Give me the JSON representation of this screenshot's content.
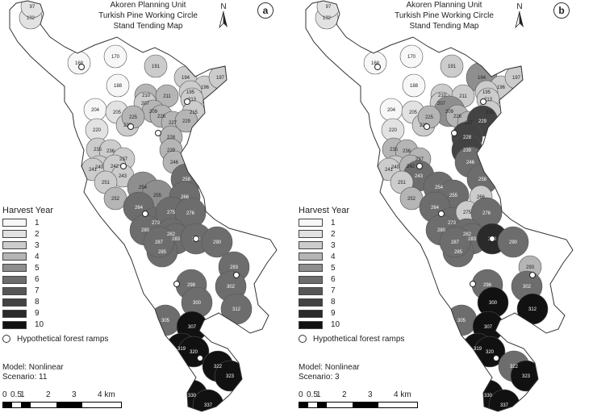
{
  "shade_colors": [
    "#f7f7f7",
    "#e2e2e2",
    "#cccccc",
    "#b5b5b5",
    "#8e8e8e",
    "#6d6d6d",
    "#575757",
    "#434343",
    "#2a2a2a",
    "#111111"
  ],
  "panels": [
    {
      "title_lines": [
        "Akoren Planning Unit",
        "Turkish Pine Working Circle",
        "Stand Tending Map"
      ],
      "letter": "a",
      "north_label": "N",
      "model": "Model: Nonlinear",
      "scenario": "Scenario: 11",
      "stands": [
        {
          "label": "132",
          "year": 2
        },
        {
          "label": "97",
          "year": 2
        },
        {
          "label": "168",
          "year": 1
        },
        {
          "label": "170",
          "year": 1
        },
        {
          "label": "191",
          "year": 3
        },
        {
          "label": "188",
          "year": 1
        },
        {
          "label": "194",
          "year": 3
        },
        {
          "label": "196",
          "year": 3
        },
        {
          "label": "197",
          "year": 3
        },
        {
          "label": "195",
          "year": 3
        },
        {
          "label": "210",
          "year": 4
        },
        {
          "label": "211",
          "year": 4
        },
        {
          "label": "204",
          "year": 1
        },
        {
          "label": "205",
          "year": 2
        },
        {
          "label": "207",
          "year": 3
        },
        {
          "label": "209",
          "year": 4
        },
        {
          "label": "213",
          "year": 3
        },
        {
          "label": "215",
          "year": 3
        },
        {
          "label": "220",
          "year": 2
        },
        {
          "label": "222",
          "year": 3
        },
        {
          "label": "225",
          "year": 4
        },
        {
          "label": "226",
          "year": 4
        },
        {
          "label": "227",
          "year": 4
        },
        {
          "label": "229",
          "year": 4
        },
        {
          "label": "228",
          "year": 4
        },
        {
          "label": "235",
          "year": 3
        },
        {
          "label": "236",
          "year": 3
        },
        {
          "label": "237",
          "year": 3
        },
        {
          "label": "239",
          "year": 4
        },
        {
          "label": "240",
          "year": 3
        },
        {
          "label": "241",
          "year": 3
        },
        {
          "label": "242",
          "year": 3
        },
        {
          "label": "243",
          "year": 3
        },
        {
          "label": "246",
          "year": 4
        },
        {
          "label": "251",
          "year": 3
        },
        {
          "label": "252",
          "year": 4
        },
        {
          "label": "254",
          "year": 5
        },
        {
          "label": "255",
          "year": 5
        },
        {
          "label": "258",
          "year": 6
        },
        {
          "label": "264",
          "year": 6
        },
        {
          "label": "266",
          "year": 6
        },
        {
          "label": "273",
          "year": 6
        },
        {
          "label": "275",
          "year": 6
        },
        {
          "label": "276",
          "year": 6
        },
        {
          "label": "280",
          "year": 6
        },
        {
          "label": "282",
          "year": 6
        },
        {
          "label": "283",
          "year": 6
        },
        {
          "label": "285",
          "year": 6
        },
        {
          "label": "287",
          "year": 6
        },
        {
          "label": "288",
          "year": 6
        },
        {
          "label": "290",
          "year": 6
        },
        {
          "label": "293",
          "year": 6
        },
        {
          "label": "298",
          "year": 6
        },
        {
          "label": "300",
          "year": 6
        },
        {
          "label": "302",
          "year": 6
        },
        {
          "label": "305",
          "year": 6
        },
        {
          "label": "307",
          "year": 10
        },
        {
          "label": "312",
          "year": 6
        },
        {
          "label": "319",
          "year": 10
        },
        {
          "label": "320",
          "year": 10
        },
        {
          "label": "322",
          "year": 10
        },
        {
          "label": "323",
          "year": 10
        },
        {
          "label": "330",
          "year": 10
        },
        {
          "label": "337",
          "year": 10
        }
      ]
    },
    {
      "title_lines": [
        "Akoren Planning Unit",
        "Turkish Pine Working Circle",
        "Stand Tending Map"
      ],
      "letter": "b",
      "north_label": "N",
      "model": "Model: Nonlinear",
      "scenario": "Scenario: 3",
      "stands": [
        {
          "label": "132",
          "year": 2
        },
        {
          "label": "97",
          "year": 2
        },
        {
          "label": "168",
          "year": 1
        },
        {
          "label": "170",
          "year": 1
        },
        {
          "label": "191",
          "year": 3
        },
        {
          "label": "188",
          "year": 1
        },
        {
          "label": "194",
          "year": 5
        },
        {
          "label": "196",
          "year": 3
        },
        {
          "label": "197",
          "year": 3
        },
        {
          "label": "195",
          "year": 3
        },
        {
          "label": "210",
          "year": 3
        },
        {
          "label": "211",
          "year": 3
        },
        {
          "label": "204",
          "year": 1
        },
        {
          "label": "205",
          "year": 2
        },
        {
          "label": "207",
          "year": 3
        },
        {
          "label": "209",
          "year": 5
        },
        {
          "label": "213",
          "year": 3
        },
        {
          "label": "215",
          "year": 3
        },
        {
          "label": "220",
          "year": 2
        },
        {
          "label": "222",
          "year": 3
        },
        {
          "label": "225",
          "year": 4
        },
        {
          "label": "226",
          "year": 4
        },
        {
          "label": "227",
          "year": 4
        },
        {
          "label": "229",
          "year": 8
        },
        {
          "label": "228",
          "year": 8
        },
        {
          "label": "235",
          "year": 4
        },
        {
          "label": "236",
          "year": 4
        },
        {
          "label": "237",
          "year": 4
        },
        {
          "label": "239",
          "year": 8
        },
        {
          "label": "240",
          "year": 3
        },
        {
          "label": "241",
          "year": 3
        },
        {
          "label": "242",
          "year": 4
        },
        {
          "label": "243",
          "year": 6
        },
        {
          "label": "246",
          "year": 6
        },
        {
          "label": "251",
          "year": 3
        },
        {
          "label": "252",
          "year": 4
        },
        {
          "label": "254",
          "year": 6
        },
        {
          "label": "255",
          "year": 6
        },
        {
          "label": "258",
          "year": 6
        },
        {
          "label": "264",
          "year": 6
        },
        {
          "label": "266",
          "year": 3
        },
        {
          "label": "273",
          "year": 6
        },
        {
          "label": "275",
          "year": 3
        },
        {
          "label": "276",
          "year": 6
        },
        {
          "label": "280",
          "year": 6
        },
        {
          "label": "282",
          "year": 6
        },
        {
          "label": "283",
          "year": 6
        },
        {
          "label": "285",
          "year": 6
        },
        {
          "label": "287",
          "year": 6
        },
        {
          "label": "288",
          "year": 9
        },
        {
          "label": "290",
          "year": 6
        },
        {
          "label": "293",
          "year": 4
        },
        {
          "label": "298",
          "year": 6
        },
        {
          "label": "300",
          "year": 10
        },
        {
          "label": "302",
          "year": 6
        },
        {
          "label": "305",
          "year": 6
        },
        {
          "label": "307",
          "year": 10
        },
        {
          "label": "312",
          "year": 10
        },
        {
          "label": "319",
          "year": 10
        },
        {
          "label": "320",
          "year": 10
        },
        {
          "label": "322",
          "year": 6
        },
        {
          "label": "323",
          "year": 10
        },
        {
          "label": "330",
          "year": 10
        },
        {
          "label": "337",
          "year": 10
        }
      ]
    }
  ],
  "legend": {
    "title": "Harvest Year",
    "items": [
      "1",
      "2",
      "3",
      "4",
      "5",
      "6",
      "7",
      "8",
      "9",
      "10"
    ],
    "ramps_label": "Hypothetical forest ramps"
  },
  "scale": {
    "labels": [
      "0",
      "0.5",
      "1",
      "2",
      "3",
      "4 km"
    ]
  }
}
